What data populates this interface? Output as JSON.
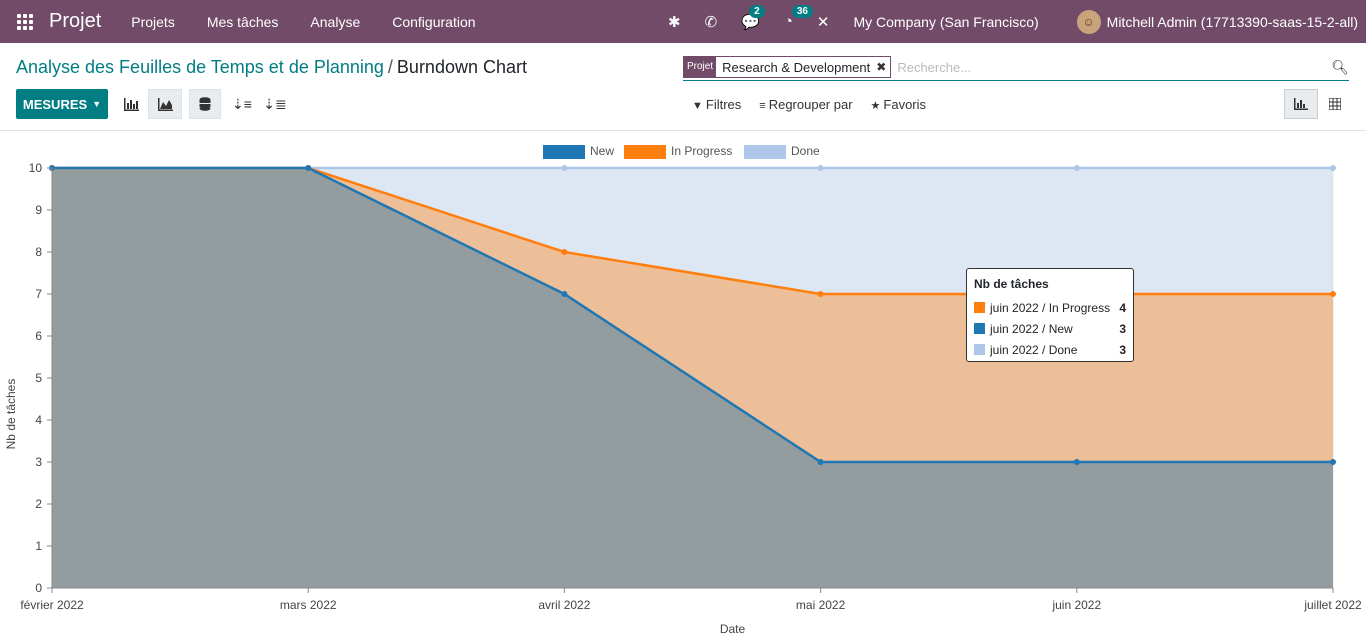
{
  "topbar": {
    "brand": "Projet",
    "menu": [
      "Projets",
      "Mes tâches",
      "Analyse",
      "Configuration"
    ],
    "chat_badge": "2",
    "activity_badge": "36",
    "company": "My Company (San Francisco)",
    "user": "Mitchell Admin (17713390-saas-15-2-all)"
  },
  "breadcrumb": {
    "parent": "Analyse des Feuilles de Temps et de Planning",
    "current": "Burndown Chart"
  },
  "search": {
    "facet_label": "Projet",
    "facet_value": "Research & Development",
    "placeholder": "Recherche..."
  },
  "toolbar": {
    "measures_label": "MESURES",
    "filters_label": "Filtres",
    "groupby_label": "Regrouper par",
    "favorites_label": "Favoris"
  },
  "colors": {
    "brand": "#714B67",
    "accent": "#017E84",
    "new": "#1f77b4",
    "in_progress": "#ff7f0e",
    "done": "#aec7e8"
  },
  "chart_data": {
    "type": "area",
    "stacked": true,
    "categories": [
      "février 2022",
      "mars 2022",
      "avril 2022",
      "mai 2022",
      "juin 2022",
      "juillet 2022"
    ],
    "series": [
      {
        "name": "New",
        "values": [
          10,
          10,
          7,
          3,
          3,
          3
        ]
      },
      {
        "name": "In Progress",
        "values": [
          0,
          0,
          1,
          4,
          4,
          4
        ]
      },
      {
        "name": "Done",
        "values": [
          0,
          0,
          2,
          3,
          3,
          3
        ]
      }
    ],
    "xlabel": "Date",
    "ylabel": "Nb de tâches",
    "ylim": [
      0,
      10
    ],
    "yticks": [
      "0",
      "1",
      "2",
      "3",
      "4",
      "5",
      "6",
      "7",
      "8",
      "9",
      "10"
    ],
    "grid": true,
    "legend": "top-center"
  },
  "tooltip": {
    "title": "Nb de tâches",
    "rows": [
      {
        "label": "juin 2022 / In Progress",
        "value": "4"
      },
      {
        "label": "juin 2022 / New",
        "value": "3"
      },
      {
        "label": "juin 2022 / Done",
        "value": "3"
      }
    ]
  }
}
